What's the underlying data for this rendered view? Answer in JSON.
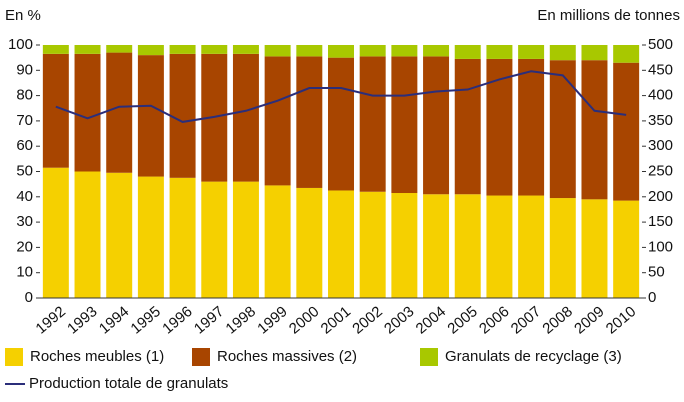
{
  "chart_data": {
    "type": "bar",
    "stacked": true,
    "y_label": "En %",
    "y2_label": "En millions de tonnes",
    "categories": [
      "1992",
      "1993",
      "1994",
      "1995",
      "1996",
      "1997",
      "1998",
      "1999",
      "2000",
      "2001",
      "2002",
      "2003",
      "2004",
      "2005",
      "2006",
      "2007",
      "2008",
      "2009",
      "2010"
    ],
    "series": [
      {
        "name": "Roches meubles (1)",
        "color": "#f5d000",
        "type": "bar",
        "values": [
          51.5,
          50,
          49.5,
          48,
          47.5,
          46,
          46,
          44.5,
          43.5,
          42.5,
          42,
          41.5,
          41,
          41,
          40.5,
          40.5,
          39.5,
          39,
          38.5
        ]
      },
      {
        "name": "Roches massives (2)",
        "color": "#a84500",
        "type": "bar",
        "values": [
          45,
          46.5,
          47.5,
          48,
          49,
          50.5,
          50.5,
          51,
          52,
          52.5,
          53.5,
          54,
          54.5,
          53.5,
          54,
          54,
          54.5,
          55,
          54.5
        ]
      },
      {
        "name": "Granulats de recyclage (3)",
        "color": "#a8c800",
        "type": "bar",
        "values": [
          3.5,
          3.5,
          3,
          4,
          3.5,
          3.5,
          3.5,
          4.5,
          4.5,
          5,
          4.5,
          4.5,
          4.5,
          5.5,
          5.5,
          5.5,
          6,
          6,
          7
        ]
      },
      {
        "name": "Production totale de granulats",
        "color": "#2b2e7a",
        "type": "line",
        "axis": "y2",
        "values": [
          378,
          355,
          378,
          380,
          348,
          358,
          370,
          390,
          415,
          415,
          400,
          400,
          408,
          412,
          432,
          448,
          440,
          370,
          362
        ]
      }
    ],
    "ylim": [
      0,
      100
    ],
    "yticks": [
      0,
      10,
      20,
      30,
      40,
      50,
      60,
      70,
      80,
      90,
      100
    ],
    "y2lim": [
      0,
      500
    ],
    "y2ticks": [
      0,
      50,
      100,
      150,
      200,
      250,
      300,
      350,
      400,
      450,
      500
    ],
    "grid": false
  }
}
